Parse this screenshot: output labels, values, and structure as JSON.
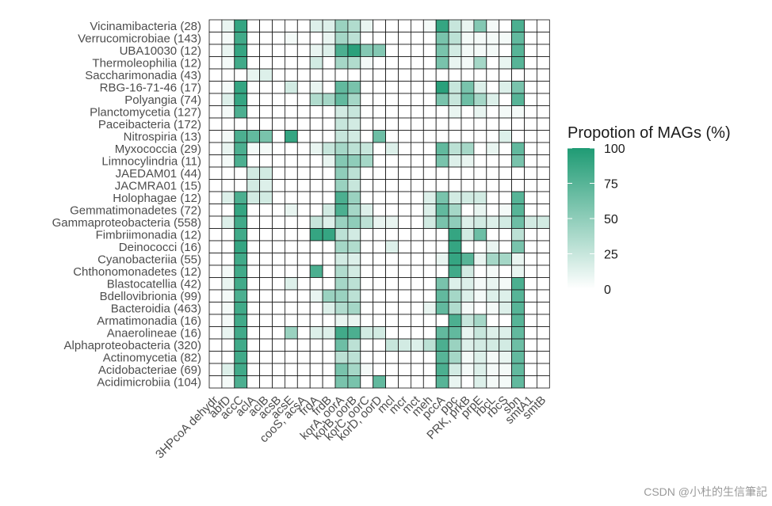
{
  "chart_data": {
    "type": "heatmap",
    "title": "",
    "xlabel": "",
    "ylabel": "",
    "rows": [
      "Vicinamibacteria (28)",
      "Verrucomicrobiae (143)",
      "UBA10030 (12)",
      "Thermoleophilia (12)",
      "Saccharimonadia (43)",
      "RBG-16-71-46 (17)",
      "Polyangia (74)",
      "Planctomycetia (127)",
      "Paceibacteria (172)",
      "Nitrospiria (13)",
      "Myxococcia (29)",
      "Limnocylindria (11)",
      "JAEDAM01 (44)",
      "JACMRA01 (15)",
      "Holophagae (12)",
      "Gemmatimonadetes (72)",
      "Gammaproteobacteria (558)",
      "Fimbriimonadia (12)",
      "Deinococci (16)",
      "Cyanobacteriia (55)",
      "Chthonomonadetes (12)",
      "Blastocatellia (42)",
      "Bdellovibrionia (99)",
      "Bacteroidia (463)",
      "Armatimonadia (16)",
      "Anaerolineae (16)",
      "Alphaproteobacteria (320)",
      "Actinomycetia (82)",
      "Acidobacteriae (69)",
      "Acidimicrobiia (104)"
    ],
    "columns": [
      "3HPcoA dehydr",
      "abfD",
      "accC",
      "aclA",
      "aclB",
      "acsB",
      "acsE",
      "cooS, acsA",
      "frdA",
      "frdB",
      "korA, oorA",
      "korB, oorB",
      "korC, oorC",
      "korD, oorD",
      "mcl",
      "mcr",
      "mct",
      "meh",
      "pccA",
      "ppc",
      "PRK, prkB",
      "prpE",
      "rbcL",
      "rbcS",
      "sbn",
      "smtA1",
      "smtB"
    ],
    "values": [
      [
        0,
        10,
        90,
        0,
        0,
        0,
        0,
        0,
        15,
        15,
        45,
        35,
        10,
        0,
        0,
        0,
        0,
        5,
        90,
        25,
        10,
        55,
        5,
        0,
        80,
        0,
        0
      ],
      [
        0,
        5,
        85,
        0,
        0,
        0,
        5,
        0,
        0,
        10,
        40,
        30,
        0,
        0,
        0,
        0,
        0,
        0,
        60,
        30,
        5,
        5,
        5,
        5,
        70,
        0,
        0
      ],
      [
        0,
        10,
        90,
        0,
        0,
        0,
        0,
        0,
        10,
        15,
        80,
        95,
        55,
        55,
        0,
        0,
        0,
        0,
        60,
        20,
        5,
        5,
        5,
        0,
        75,
        0,
        0
      ],
      [
        0,
        5,
        85,
        0,
        0,
        0,
        0,
        0,
        20,
        0,
        40,
        35,
        5,
        0,
        0,
        0,
        0,
        0,
        60,
        10,
        5,
        40,
        0,
        10,
        75,
        0,
        0
      ],
      [
        0,
        0,
        0,
        10,
        15,
        0,
        0,
        0,
        0,
        0,
        0,
        0,
        0,
        0,
        0,
        0,
        0,
        0,
        0,
        0,
        0,
        0,
        0,
        0,
        0,
        0,
        0
      ],
      [
        0,
        5,
        90,
        0,
        0,
        0,
        20,
        0,
        10,
        0,
        70,
        60,
        0,
        0,
        0,
        0,
        0,
        0,
        95,
        25,
        60,
        15,
        0,
        15,
        60,
        0,
        0
      ],
      [
        0,
        15,
        90,
        0,
        0,
        0,
        0,
        0,
        35,
        40,
        70,
        40,
        0,
        0,
        0,
        0,
        0,
        0,
        60,
        25,
        65,
        40,
        15,
        0,
        75,
        0,
        0
      ],
      [
        0,
        5,
        80,
        0,
        0,
        0,
        0,
        0,
        0,
        0,
        20,
        25,
        0,
        0,
        0,
        0,
        0,
        0,
        0,
        10,
        0,
        10,
        0,
        5,
        5,
        0,
        0
      ],
      [
        0,
        0,
        0,
        0,
        0,
        0,
        0,
        0,
        0,
        0,
        25,
        20,
        0,
        0,
        0,
        0,
        0,
        0,
        0,
        0,
        0,
        0,
        0,
        0,
        0,
        0,
        0
      ],
      [
        0,
        5,
        80,
        70,
        60,
        0,
        90,
        0,
        0,
        0,
        25,
        20,
        0,
        65,
        0,
        0,
        0,
        0,
        0,
        0,
        0,
        0,
        0,
        15,
        0,
        0,
        0
      ],
      [
        0,
        10,
        80,
        5,
        5,
        0,
        0,
        0,
        10,
        25,
        40,
        30,
        25,
        0,
        15,
        0,
        0,
        0,
        70,
        30,
        40,
        0,
        10,
        0,
        70,
        0,
        0
      ],
      [
        0,
        5,
        80,
        0,
        0,
        0,
        0,
        0,
        0,
        10,
        55,
        50,
        40,
        0,
        0,
        0,
        0,
        0,
        60,
        15,
        10,
        0,
        0,
        0,
        60,
        0,
        0
      ],
      [
        0,
        0,
        0,
        20,
        20,
        0,
        0,
        0,
        0,
        0,
        50,
        30,
        0,
        0,
        0,
        0,
        0,
        0,
        0,
        0,
        0,
        0,
        0,
        0,
        0,
        0,
        0
      ],
      [
        0,
        0,
        0,
        20,
        15,
        0,
        0,
        0,
        0,
        0,
        45,
        25,
        0,
        0,
        0,
        0,
        0,
        0,
        0,
        0,
        0,
        0,
        0,
        0,
        0,
        0,
        0
      ],
      [
        0,
        15,
        80,
        20,
        20,
        0,
        0,
        0,
        0,
        0,
        80,
        45,
        0,
        0,
        0,
        0,
        0,
        15,
        60,
        20,
        20,
        20,
        0,
        0,
        75,
        0,
        0
      ],
      [
        0,
        0,
        90,
        0,
        0,
        0,
        10,
        0,
        0,
        20,
        80,
        40,
        15,
        0,
        0,
        0,
        0,
        15,
        70,
        40,
        0,
        10,
        0,
        5,
        75,
        0,
        0
      ],
      [
        0,
        15,
        85,
        0,
        0,
        0,
        0,
        0,
        25,
        15,
        45,
        50,
        30,
        10,
        10,
        0,
        0,
        20,
        60,
        50,
        15,
        20,
        15,
        20,
        65,
        20,
        20
      ],
      [
        0,
        0,
        85,
        0,
        0,
        0,
        0,
        0,
        90,
        90,
        30,
        20,
        0,
        0,
        0,
        0,
        0,
        0,
        0,
        90,
        20,
        65,
        0,
        0,
        30,
        0,
        0
      ],
      [
        0,
        0,
        90,
        0,
        0,
        0,
        0,
        0,
        0,
        0,
        40,
        35,
        0,
        0,
        15,
        0,
        0,
        0,
        0,
        90,
        0,
        0,
        10,
        0,
        60,
        0,
        0
      ],
      [
        0,
        0,
        85,
        0,
        0,
        0,
        0,
        0,
        0,
        0,
        20,
        15,
        0,
        0,
        0,
        0,
        0,
        0,
        10,
        90,
        75,
        10,
        40,
        40,
        10,
        0,
        0
      ],
      [
        0,
        5,
        85,
        0,
        0,
        0,
        0,
        0,
        80,
        0,
        35,
        20,
        0,
        0,
        0,
        0,
        0,
        0,
        0,
        85,
        20,
        0,
        5,
        0,
        10,
        0,
        0
      ],
      [
        0,
        10,
        85,
        0,
        0,
        0,
        15,
        0,
        0,
        0,
        40,
        30,
        0,
        0,
        0,
        0,
        0,
        0,
        60,
        15,
        15,
        5,
        10,
        5,
        80,
        0,
        0
      ],
      [
        0,
        5,
        80,
        0,
        0,
        0,
        0,
        0,
        10,
        45,
        45,
        30,
        0,
        0,
        0,
        0,
        0,
        0,
        70,
        40,
        15,
        5,
        15,
        15,
        75,
        0,
        0
      ],
      [
        0,
        5,
        85,
        0,
        0,
        0,
        0,
        0,
        0,
        15,
        35,
        40,
        0,
        0,
        0,
        0,
        0,
        10,
        70,
        35,
        5,
        0,
        5,
        15,
        75,
        0,
        0
      ],
      [
        0,
        5,
        85,
        0,
        0,
        0,
        0,
        0,
        0,
        0,
        10,
        10,
        0,
        0,
        0,
        0,
        0,
        0,
        0,
        80,
        25,
        40,
        0,
        0,
        75,
        0,
        0
      ],
      [
        0,
        10,
        85,
        0,
        0,
        0,
        45,
        0,
        15,
        15,
        85,
        80,
        20,
        20,
        0,
        0,
        0,
        0,
        70,
        70,
        10,
        25,
        15,
        15,
        70,
        0,
        0
      ],
      [
        0,
        0,
        85,
        0,
        0,
        0,
        0,
        0,
        0,
        0,
        65,
        30,
        0,
        0,
        25,
        20,
        15,
        30,
        80,
        45,
        15,
        20,
        20,
        20,
        65,
        0,
        0
      ],
      [
        0,
        0,
        85,
        0,
        0,
        0,
        0,
        0,
        0,
        0,
        30,
        30,
        0,
        0,
        0,
        0,
        0,
        0,
        75,
        40,
        5,
        15,
        5,
        10,
        70,
        0,
        0
      ],
      [
        0,
        15,
        85,
        0,
        0,
        0,
        0,
        0,
        0,
        0,
        60,
        40,
        5,
        0,
        0,
        0,
        0,
        0,
        80,
        20,
        5,
        15,
        5,
        5,
        70,
        0,
        0
      ],
      [
        0,
        5,
        80,
        0,
        0,
        0,
        0,
        0,
        0,
        0,
        60,
        60,
        0,
        70,
        0,
        0,
        0,
        0,
        75,
        10,
        0,
        15,
        5,
        5,
        70,
        0,
        0
      ]
    ],
    "color_range": [
      0,
      100
    ],
    "color_low": "#ffffff",
    "color_high": "#1f9b74",
    "grid": true,
    "legend": {
      "title": "Propotion of MAGs (%)",
      "ticks": [
        "100",
        "75",
        "50",
        "25",
        "0"
      ],
      "placement": "right"
    }
  },
  "watermark": "CSDN @小杜的生信筆記"
}
